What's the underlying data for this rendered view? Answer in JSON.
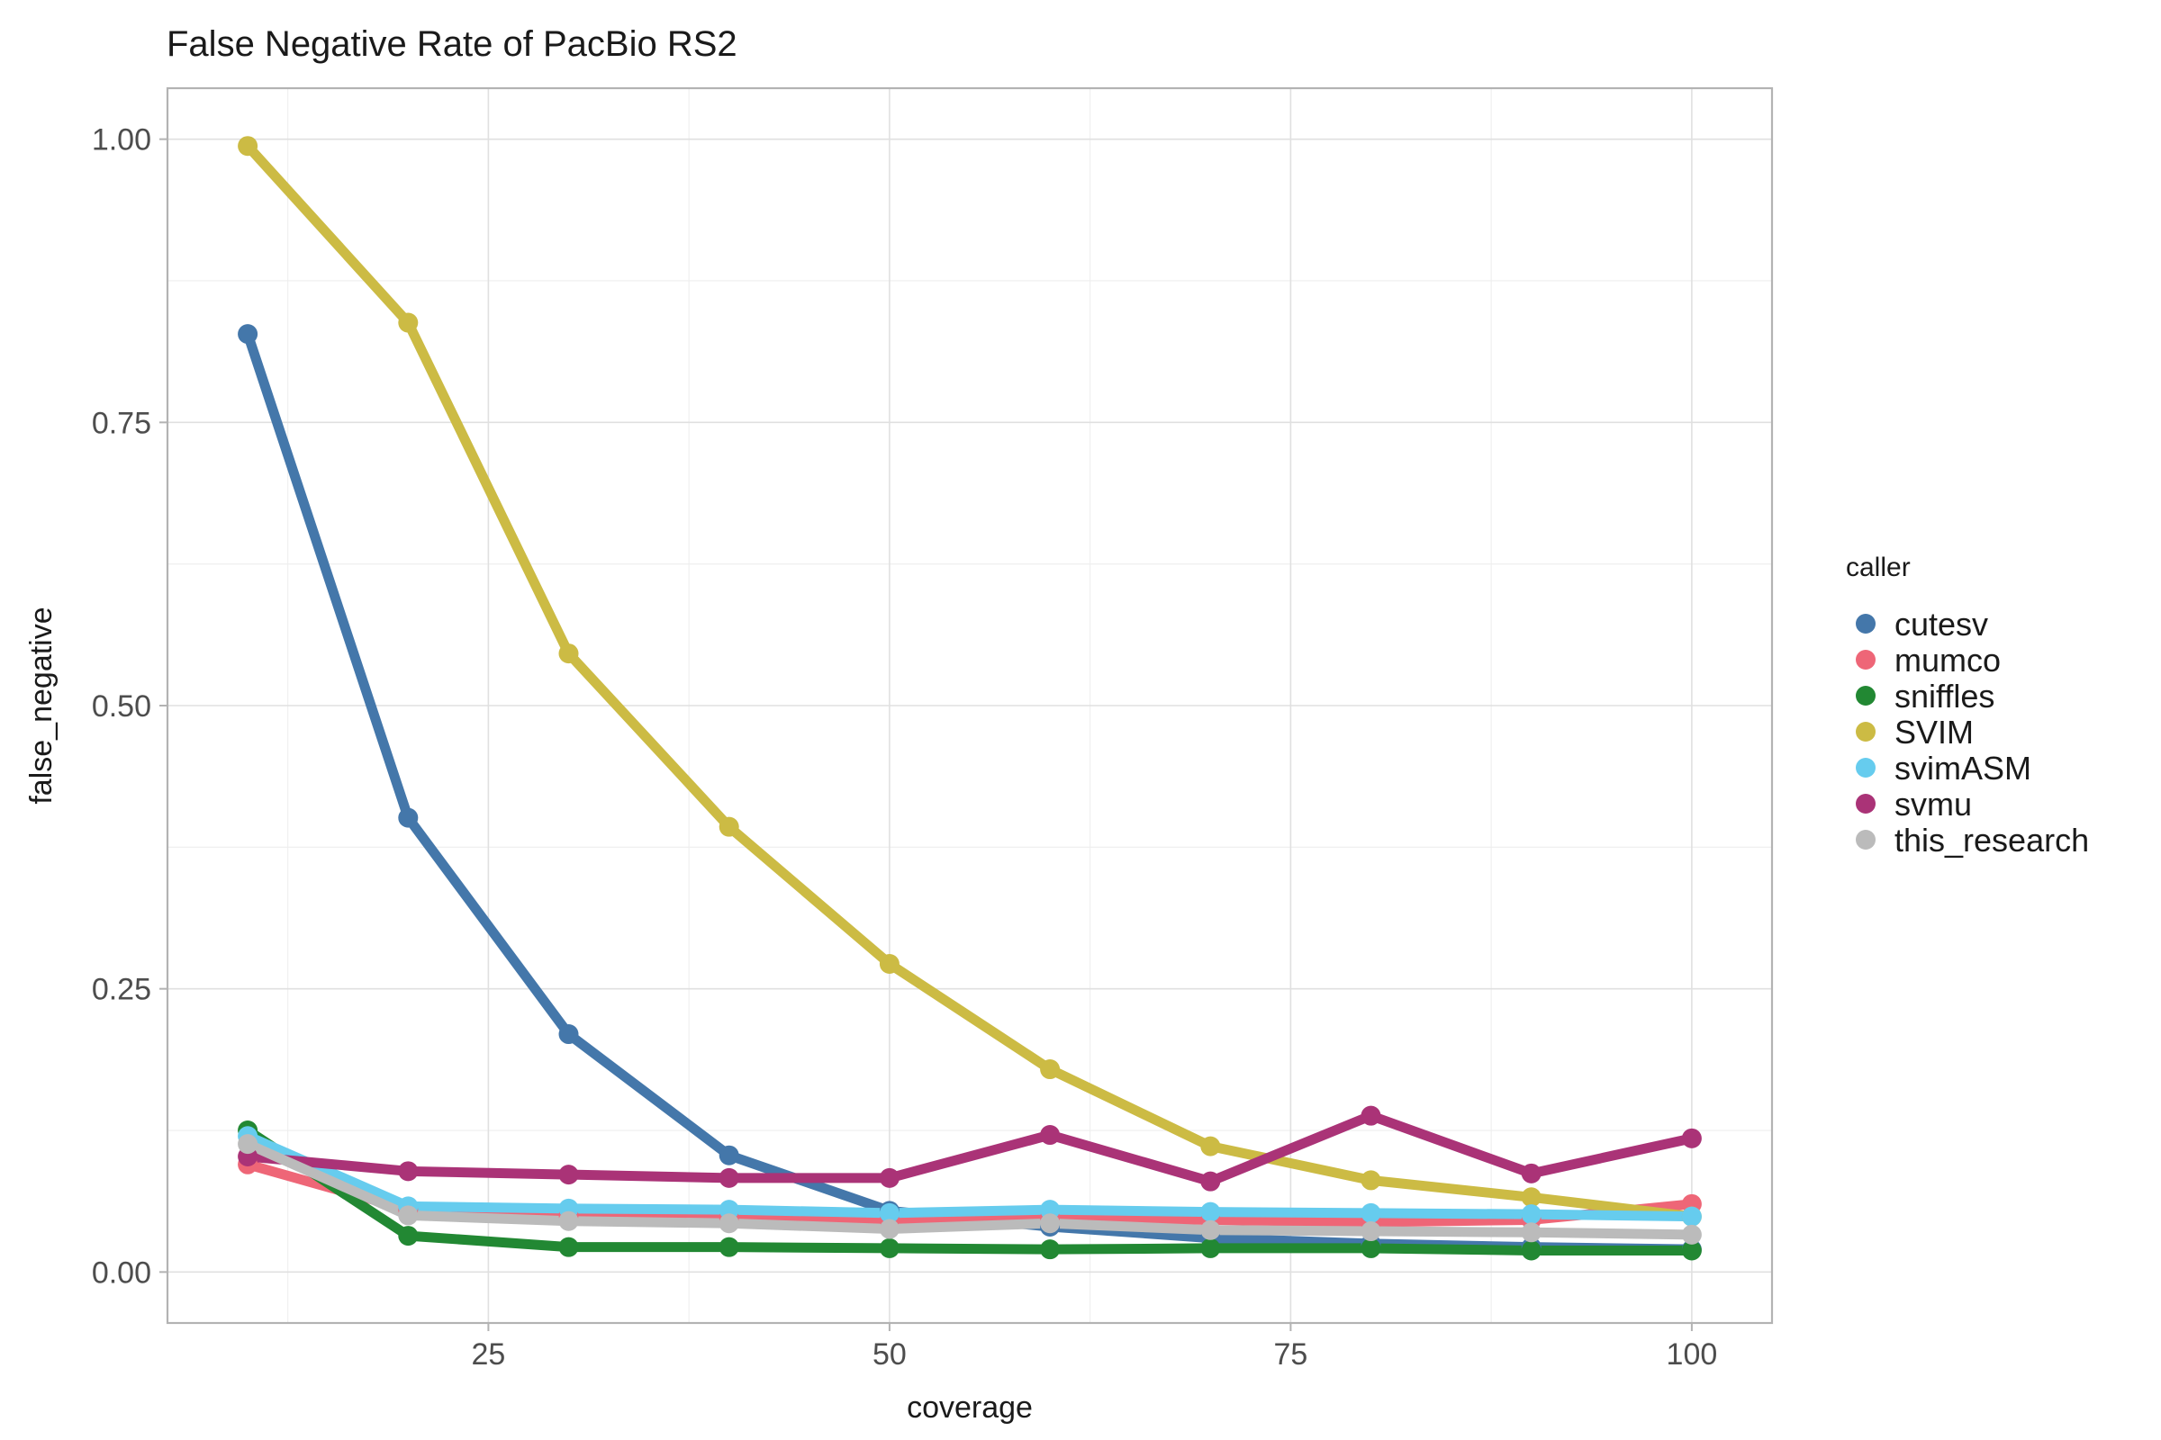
{
  "chart_data": {
    "type": "line",
    "title": "False Negative Rate of PacBio RS2",
    "xlabel": "coverage",
    "ylabel": "false_negative",
    "xlim": [
      5,
      105
    ],
    "ylim": [
      -0.045,
      1.045
    ],
    "x_ticks": [
      25,
      50,
      75,
      100
    ],
    "x_tick_labels": [
      "25",
      "50",
      "75",
      "100"
    ],
    "y_ticks": [
      0,
      0.25,
      0.5,
      0.75,
      1
    ],
    "y_tick_labels": [
      "0.00",
      "0.25",
      "0.50",
      "0.75",
      "1.00"
    ],
    "grid": true,
    "legend": {
      "title": "caller",
      "position": "right"
    },
    "x": [
      10,
      20,
      30,
      40,
      50,
      60,
      70,
      80,
      90,
      100
    ],
    "series": [
      {
        "name": "cutesv",
        "color": "#4477aa",
        "values": [
          0.828,
          0.401,
          0.21,
          0.103,
          0.054,
          0.04,
          0.03,
          0.025,
          0.022,
          0.02
        ]
      },
      {
        "name": "mumco",
        "color": "#ee6677",
        "values": [
          0.095,
          0.055,
          0.05,
          0.048,
          0.046,
          0.048,
          0.046,
          0.044,
          0.046,
          0.06
        ]
      },
      {
        "name": "sniffles",
        "color": "#228833",
        "values": [
          0.125,
          0.032,
          0.022,
          0.022,
          0.021,
          0.02,
          0.021,
          0.021,
          0.019,
          0.019
        ]
      },
      {
        "name": "SVIM",
        "color": "#ccbb44",
        "values": [
          0.994,
          0.838,
          0.546,
          0.393,
          0.272,
          0.179,
          0.111,
          0.081,
          0.066,
          0.049
        ]
      },
      {
        "name": "svimASM",
        "color": "#66ccee",
        "values": [
          0.12,
          0.058,
          0.056,
          0.055,
          0.052,
          0.055,
          0.053,
          0.052,
          0.051,
          0.049
        ]
      },
      {
        "name": "svmu",
        "color": "#aa3377",
        "values": [
          0.102,
          0.089,
          0.086,
          0.083,
          0.083,
          0.121,
          0.08,
          0.138,
          0.087,
          0.118
        ]
      },
      {
        "name": "this_research",
        "color": "#bbbbbb",
        "values": [
          0.113,
          0.05,
          0.045,
          0.043,
          0.038,
          0.043,
          0.037,
          0.036,
          0.035,
          0.033
        ]
      }
    ]
  }
}
